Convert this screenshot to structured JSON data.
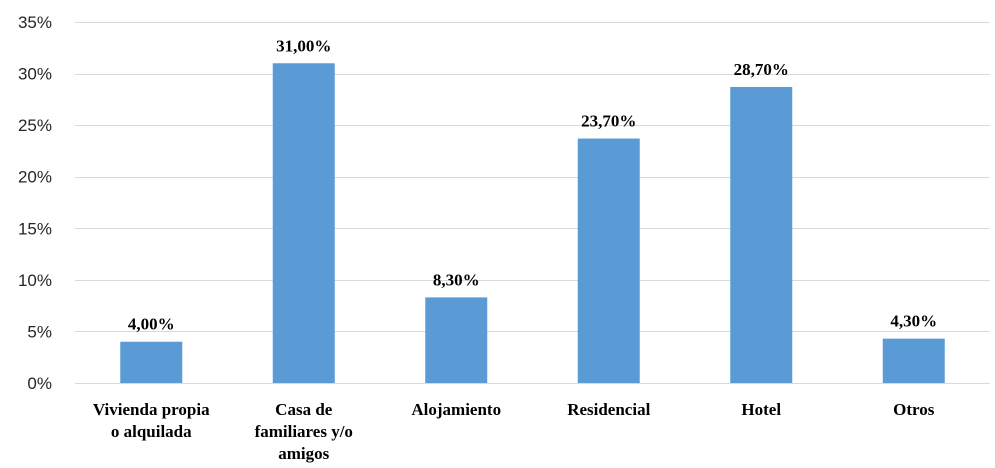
{
  "chart_data": {
    "type": "bar",
    "categories": [
      [
        "Vivienda propia",
        "o alquilada"
      ],
      [
        "Casa de",
        "familiares y/o",
        "amigos"
      ],
      [
        "Alojamiento"
      ],
      [
        "Residencial"
      ],
      [
        "Hotel"
      ],
      [
        "Otros"
      ]
    ],
    "values": [
      4.0,
      31.0,
      8.3,
      23.7,
      28.7,
      4.3
    ],
    "data_labels": [
      "4,00%",
      "31,00%",
      "8,30%",
      "23,70%",
      "28,70%",
      "4,30%"
    ],
    "y_ticks": [
      0,
      5,
      10,
      15,
      20,
      25,
      30,
      35
    ],
    "y_tick_labels": [
      "0%",
      "5%",
      "10%",
      "15%",
      "20%",
      "25%",
      "30%",
      "35%"
    ],
    "ylim": [
      0,
      35
    ],
    "grid": true,
    "legend": "none",
    "bar_color": "#5b9bd5"
  }
}
